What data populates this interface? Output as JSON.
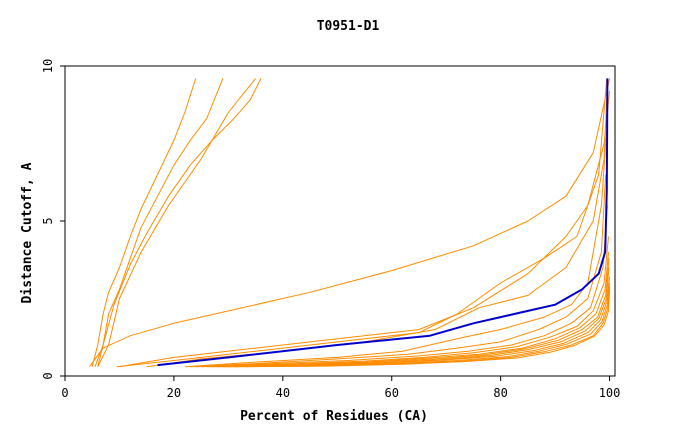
{
  "chart_data": {
    "type": "line",
    "title": "T0951-D1",
    "xlabel": "Percent of Residues (CA)",
    "ylabel": "Distance Cutoff, A",
    "xlim": [
      0,
      101
    ],
    "ylim": [
      0,
      10
    ],
    "xticks": [
      "0",
      "20",
      "40",
      "60",
      "80",
      "100"
    ],
    "yticks": [
      "0",
      "5",
      "10"
    ],
    "grid": false,
    "legend": "none",
    "colors": {
      "models": "#ff8c00",
      "highlight": "#0000cd"
    },
    "series": [
      {
        "x": [
          17,
          30,
          50,
          67,
          75,
          80,
          85,
          90,
          95,
          98,
          99.2,
          99.5,
          99.6
        ],
        "y": [
          0.35,
          0.6,
          1.0,
          1.3,
          1.7,
          1.9,
          2.1,
          2.3,
          2.8,
          3.3,
          4.0,
          6.0,
          9.6
        ]
      },
      {
        "x": [
          5,
          6,
          7,
          8,
          10,
          12,
          14,
          17,
          20,
          22,
          24
        ],
        "y": [
          0.3,
          1.0,
          2.0,
          2.7,
          3.5,
          4.5,
          5.4,
          6.5,
          7.6,
          8.5,
          9.6
        ]
      },
      {
        "x": [
          5.5,
          7,
          8,
          10,
          12,
          14,
          17,
          20,
          23,
          26,
          29
        ],
        "y": [
          0.3,
          1.0,
          2.0,
          2.8,
          3.8,
          4.8,
          5.8,
          6.8,
          7.6,
          8.3,
          9.6
        ]
      },
      {
        "x": [
          6,
          7,
          9,
          12,
          15,
          19,
          23,
          27,
          31,
          34,
          36
        ],
        "y": [
          0.3,
          1.0,
          2.3,
          3.6,
          4.6,
          5.8,
          6.8,
          7.6,
          8.3,
          8.9,
          9.6
        ]
      },
      {
        "x": [
          6,
          8,
          10,
          14,
          19,
          25,
          30,
          35
        ],
        "y": [
          0.3,
          1.0,
          2.5,
          4.0,
          5.5,
          7.0,
          8.5,
          9.6
        ]
      },
      {
        "x": [
          4.5,
          7,
          12,
          20,
          30,
          45,
          60,
          75,
          85,
          92,
          97,
          100
        ],
        "y": [
          0.3,
          0.9,
          1.3,
          1.7,
          2.1,
          2.7,
          3.4,
          4.2,
          5.0,
          5.8,
          7.2,
          9.6
        ]
      },
      {
        "x": [
          10,
          20,
          35,
          50,
          65,
          75,
          85,
          92,
          96,
          99,
          100
        ],
        "y": [
          0.3,
          0.6,
          0.9,
          1.2,
          1.5,
          2.2,
          3.3,
          4.5,
          5.5,
          7.5,
          9.2
        ]
      },
      {
        "x": [
          9.5,
          20,
          35,
          50,
          65,
          72,
          80,
          88,
          94,
          98,
          99.5
        ],
        "y": [
          0.3,
          0.5,
          0.8,
          1.1,
          1.4,
          2.0,
          3.0,
          3.8,
          4.5,
          6.5,
          9.6
        ]
      },
      {
        "x": [
          15,
          25,
          40,
          55,
          68,
          76,
          85,
          92,
          97,
          99,
          99.5
        ],
        "y": [
          0.3,
          0.55,
          0.8,
          1.1,
          1.5,
          2.2,
          2.6,
          3.5,
          5.0,
          7.0,
          9.0
        ]
      },
      {
        "x": [
          22,
          35,
          50,
          62,
          72,
          80,
          88,
          93,
          96,
          98.5,
          99.5
        ],
        "y": [
          0.3,
          0.45,
          0.6,
          0.8,
          1.2,
          1.5,
          1.9,
          2.3,
          3.0,
          5.5,
          8.0
        ]
      },
      {
        "x": [
          23,
          35,
          50,
          63,
          72,
          80,
          87,
          92,
          96,
          98.5,
          99.3
        ],
        "y": [
          0.3,
          0.4,
          0.55,
          0.7,
          0.9,
          1.1,
          1.5,
          1.9,
          2.5,
          4.0,
          6.5
        ]
      },
      {
        "x": [
          24,
          38,
          52,
          65,
          74,
          82,
          88,
          93,
          96.5,
          98.8,
          99.6
        ],
        "y": [
          0.3,
          0.4,
          0.5,
          0.65,
          0.8,
          1.0,
          1.3,
          1.7,
          2.2,
          3.5,
          5.5
        ]
      },
      {
        "x": [
          25,
          40,
          55,
          66,
          75,
          83,
          89,
          94,
          97,
          99,
          99.8
        ],
        "y": [
          0.3,
          0.38,
          0.48,
          0.6,
          0.75,
          0.95,
          1.25,
          1.6,
          2.1,
          3.0,
          4.5
        ]
      },
      {
        "x": [
          26,
          40,
          55,
          67,
          76,
          84,
          90,
          94.5,
          97.5,
          99.2,
          99.8
        ],
        "y": [
          0.3,
          0.36,
          0.45,
          0.58,
          0.7,
          0.9,
          1.2,
          1.55,
          2.0,
          2.8,
          4.0
        ]
      },
      {
        "x": [
          27,
          42,
          56,
          68,
          77,
          84.5,
          90.5,
          95,
          97.8,
          99.3,
          99.9
        ],
        "y": [
          0.3,
          0.35,
          0.44,
          0.55,
          0.68,
          0.88,
          1.15,
          1.5,
          1.9,
          2.6,
          3.8
        ]
      },
      {
        "x": [
          28,
          43,
          57,
          69,
          78,
          85,
          91,
          95.5,
          98,
          99.4,
          99.9
        ],
        "y": [
          0.3,
          0.34,
          0.42,
          0.53,
          0.66,
          0.85,
          1.1,
          1.45,
          1.85,
          2.5,
          3.5
        ]
      },
      {
        "x": [
          29,
          44,
          58,
          70,
          79,
          86,
          91.5,
          96,
          98.3,
          99.5,
          100
        ],
        "y": [
          0.3,
          0.33,
          0.41,
          0.52,
          0.64,
          0.82,
          1.05,
          1.4,
          1.8,
          2.4,
          3.2
        ]
      },
      {
        "x": [
          30,
          45,
          60,
          72,
          81,
          87,
          92,
          96.5,
          98.6,
          99.6,
          100
        ],
        "y": [
          0.3,
          0.33,
          0.4,
          0.5,
          0.62,
          0.8,
          1.02,
          1.35,
          1.75,
          2.3,
          3.0
        ]
      },
      {
        "x": [
          31,
          46,
          61,
          73,
          82,
          88,
          93,
          97,
          98.8,
          99.7,
          100
        ],
        "y": [
          0.3,
          0.32,
          0.39,
          0.48,
          0.6,
          0.78,
          1.0,
          1.3,
          1.7,
          2.2,
          2.9
        ]
      },
      {
        "x": [
          33,
          48,
          62,
          74,
          83,
          89,
          93.5,
          97.2,
          99,
          99.8,
          100
        ],
        "y": [
          0.3,
          0.32,
          0.38,
          0.47,
          0.58,
          0.76,
          0.98,
          1.28,
          1.65,
          2.1,
          2.8
        ]
      }
    ]
  }
}
